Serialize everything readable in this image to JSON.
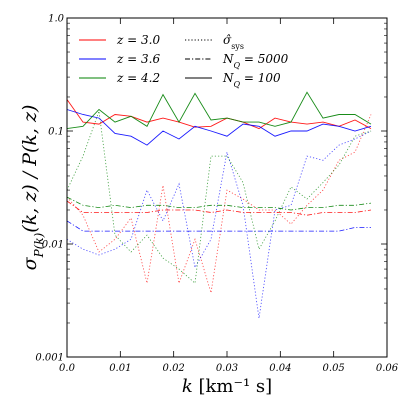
{
  "chart_data": {
    "type": "line",
    "title": "",
    "xlabel": "k [km⁻¹ s]",
    "ylabel": "σP(k)(k, z) / P(k, z)",
    "xlim": [
      0.0,
      0.06
    ],
    "ylim": [
      0.001,
      1.0
    ],
    "yscale": "log",
    "x_ticks": [
      "0.0",
      "0.01",
      "0.02",
      "0.03",
      "0.04",
      "0.05",
      "0.06"
    ],
    "y_ticks": [
      "0.001",
      "0.01",
      "0.1",
      "1.0"
    ],
    "grid": false,
    "legend_position": "top",
    "legend": {
      "colors": [
        {
          "label": "z = 3.0",
          "color": "#ff0000"
        },
        {
          "label": "z = 3.6",
          "color": "#0000ff"
        },
        {
          "label": "z = 4.2",
          "color": "#008000"
        }
      ],
      "styles": [
        {
          "label": "σ̂sys",
          "dash": "dotted"
        },
        {
          "label": "NQ = 5000",
          "dash": "dashdot"
        },
        {
          "label": "NQ = 100",
          "dash": "solid"
        }
      ]
    },
    "x": [
      0.0,
      0.003,
      0.006,
      0.009,
      0.012,
      0.015,
      0.018,
      0.021,
      0.024,
      0.027,
      0.03,
      0.033,
      0.036,
      0.039,
      0.042,
      0.045,
      0.048,
      0.051,
      0.054,
      0.057
    ],
    "series": [
      {
        "z": "z = 3.0",
        "dash": "solid",
        "color": "#ff0000",
        "values": [
          0.19,
          0.12,
          0.115,
          0.14,
          0.135,
          0.12,
          0.13,
          0.12,
          0.108,
          0.11,
          0.13,
          0.12,
          0.105,
          0.13,
          0.12,
          0.115,
          0.12,
          0.11,
          0.125,
          0.105
        ]
      },
      {
        "z": "z = 3.6",
        "dash": "solid",
        "color": "#0000ff",
        "values": [
          0.155,
          0.14,
          0.13,
          0.095,
          0.09,
          0.075,
          0.1,
          0.085,
          0.11,
          0.1,
          0.09,
          0.115,
          0.11,
          0.09,
          0.1,
          0.1,
          0.115,
          0.11,
          0.1,
          0.11
        ]
      },
      {
        "z": "z = 4.2",
        "dash": "solid",
        "color": "#008000",
        "values": [
          0.105,
          0.11,
          0.155,
          0.12,
          0.135,
          0.11,
          0.21,
          0.12,
          0.215,
          0.125,
          0.13,
          0.12,
          0.12,
          0.11,
          0.12,
          0.22,
          0.13,
          0.14,
          0.14,
          0.115
        ]
      },
      {
        "z": "z = 3.0",
        "dash": "dashdot",
        "color": "#ff0000",
        "values": [
          0.024,
          0.019,
          0.019,
          0.019,
          0.019,
          0.019,
          0.02,
          0.02,
          0.02,
          0.019,
          0.02,
          0.019,
          0.019,
          0.019,
          0.019,
          0.018,
          0.019,
          0.019,
          0.019,
          0.02
        ]
      },
      {
        "z": "z = 3.6",
        "dash": "dashdot",
        "color": "#0000ff",
        "values": [
          0.016,
          0.013,
          0.013,
          0.013,
          0.013,
          0.013,
          0.013,
          0.013,
          0.013,
          0.013,
          0.013,
          0.013,
          0.013,
          0.013,
          0.013,
          0.013,
          0.013,
          0.013,
          0.014,
          0.014
        ]
      },
      {
        "z": "z = 4.2",
        "dash": "dashdot",
        "color": "#008000",
        "values": [
          0.026,
          0.022,
          0.021,
          0.022,
          0.021,
          0.022,
          0.022,
          0.021,
          0.021,
          0.022,
          0.022,
          0.021,
          0.021,
          0.021,
          0.02,
          0.021,
          0.021,
          0.022,
          0.022,
          0.023
        ]
      },
      {
        "z": "z = 3.0",
        "dash": "dotted",
        "color": "#ff0000",
        "values": [
          0.026,
          0.018,
          0.0085,
          0.011,
          0.017,
          0.0045,
          0.033,
          0.0045,
          0.011,
          0.0037,
          0.03,
          0.025,
          0.02,
          0.02,
          0.015,
          0.022,
          0.03,
          0.055,
          0.065,
          0.14
        ]
      },
      {
        "z": "z = 3.6",
        "dash": "dotted",
        "color": "#0000ff",
        "values": [
          0.011,
          0.009,
          0.008,
          0.009,
          0.011,
          0.03,
          0.016,
          0.034,
          0.0062,
          0.011,
          0.065,
          0.022,
          0.0022,
          0.02,
          0.022,
          0.06,
          0.055,
          0.075,
          0.085,
          0.1
        ]
      },
      {
        "z": "z = 4.2",
        "dash": "dotted",
        "color": "#008000",
        "values": [
          0.03,
          0.06,
          0.15,
          0.012,
          0.0085,
          0.012,
          0.0075,
          0.006,
          0.0045,
          0.06,
          0.06,
          0.035,
          0.009,
          0.016,
          0.032,
          0.025,
          0.035,
          0.05,
          0.09,
          0.1
        ]
      }
    ]
  }
}
